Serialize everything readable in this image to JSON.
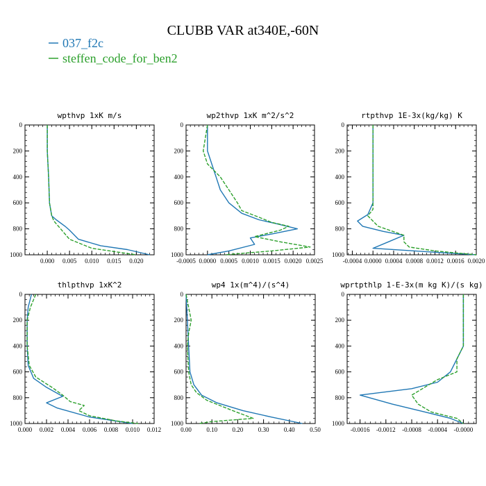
{
  "figure": {
    "title": "CLUBB VAR at340E,-60N",
    "legend": [
      {
        "name": "037_f2c",
        "color": "#1f77b4",
        "dash": "solid"
      },
      {
        "name": "steffen_code_for_ben2",
        "color": "#2ca02c",
        "dash": "dashed"
      }
    ]
  },
  "chart_data": [
    {
      "type": "line",
      "title": "wpthvp   1xK m/s",
      "xlim": [
        -0.005,
        0.024
      ],
      "ylim": [
        1000,
        0
      ],
      "xticks": [
        0.0,
        0.005,
        0.01,
        0.015,
        0.02
      ],
      "xtick_labels": [
        "0.000",
        "0.005",
        "0.010",
        "0.015",
        "0.020"
      ],
      "yticks": [
        0,
        200,
        400,
        600,
        800,
        1000
      ],
      "ytick_labels": [
        "0",
        "200",
        "400",
        "600",
        "800",
        "1000"
      ],
      "series": [
        {
          "name": "037_f2c",
          "points": [
            [
              0.0,
              0
            ],
            [
              0.0,
              200
            ],
            [
              0.0003,
              400
            ],
            [
              0.0005,
              600
            ],
            [
              0.001,
              700
            ],
            [
              0.002,
              730
            ],
            [
              0.004,
              780
            ],
            [
              0.005,
              810
            ],
            [
              0.007,
              880
            ],
            [
              0.012,
              930
            ],
            [
              0.018,
              960
            ],
            [
              0.023,
              1000
            ]
          ]
        },
        {
          "name": "steffen_code_for_ben2",
          "points": [
            [
              0.0,
              0
            ],
            [
              0.0,
              200
            ],
            [
              0.0003,
              400
            ],
            [
              0.0005,
              600
            ],
            [
              0.001,
              700
            ],
            [
              0.0015,
              740
            ],
            [
              0.003,
              800
            ],
            [
              0.005,
              880
            ],
            [
              0.01,
              950
            ],
            [
              0.015,
              975
            ],
            [
              0.02,
              1000
            ]
          ]
        }
      ]
    },
    {
      "type": "line",
      "title": "wp2thvp   1xK m^2/s^2",
      "xlim": [
        -0.0005,
        0.0025
      ],
      "ylim": [
        1000,
        0
      ],
      "xticks": [
        -0.0005,
        0.0,
        0.0005,
        0.001,
        0.0015,
        0.002,
        0.0025
      ],
      "xtick_labels": [
        "-0.0005",
        "0.0000",
        "0.0005",
        "0.0010",
        "0.0015",
        "0.0020",
        "0.0025"
      ],
      "yticks": [
        0,
        200,
        400,
        600,
        800,
        1000
      ],
      "ytick_labels": [
        "0",
        "200",
        "400",
        "600",
        "800",
        "1000"
      ],
      "series": [
        {
          "name": "037_f2c",
          "points": [
            [
              0.0,
              0
            ],
            [
              0.0,
              200
            ],
            [
              0.0001,
              300
            ],
            [
              0.0002,
              400
            ],
            [
              0.0003,
              500
            ],
            [
              0.0005,
              600
            ],
            [
              0.0008,
              680
            ],
            [
              0.0012,
              730
            ],
            [
              0.0016,
              760
            ],
            [
              0.0021,
              800
            ],
            [
              0.0015,
              840
            ],
            [
              0.001,
              870
            ],
            [
              0.0011,
              920
            ],
            [
              0.0005,
              970
            ],
            [
              0.0,
              1000
            ]
          ]
        },
        {
          "name": "steffen_code_for_ben2",
          "points": [
            [
              0.0,
              0
            ],
            [
              -0.0001,
              200
            ],
            [
              0.0,
              300
            ],
            [
              0.0003,
              400
            ],
            [
              0.0005,
              500
            ],
            [
              0.0007,
              600
            ],
            [
              0.0008,
              660
            ],
            [
              0.0012,
              710
            ],
            [
              0.0015,
              750
            ],
            [
              0.0019,
              780
            ],
            [
              0.0017,
              810
            ],
            [
              0.0011,
              860
            ],
            [
              0.0017,
              900
            ],
            [
              0.0024,
              940
            ],
            [
              0.0015,
              970
            ],
            [
              0.0004,
              1000
            ]
          ]
        }
      ]
    },
    {
      "type": "line",
      "title": "rtpthvp   1E-3x(kg/kg) K",
      "xlim": [
        -0.0005,
        0.002
      ],
      "ylim": [
        1000,
        0
      ],
      "xticks": [
        -0.0004,
        0.0,
        0.0004,
        0.0008,
        0.0012,
        0.0016,
        0.002
      ],
      "xtick_labels": [
        "-0.0004",
        "0.0000",
        "0.0004",
        "0.0008",
        "0.0012",
        "0.0016",
        "0.0020"
      ],
      "yticks": [
        0,
        200,
        400,
        600,
        800,
        1000
      ],
      "ytick_labels": [
        "0",
        "200",
        "400",
        "600",
        "800",
        "1000"
      ],
      "series": [
        {
          "name": "037_f2c",
          "points": [
            [
              0.0,
              0
            ],
            [
              0.0,
              400
            ],
            [
              0.0,
              600
            ],
            [
              -0.0001,
              690
            ],
            [
              -0.0003,
              740
            ],
            [
              -0.0002,
              780
            ],
            [
              0.0002,
              820
            ],
            [
              0.0006,
              850
            ],
            [
              0.0003,
              900
            ],
            [
              0.0,
              950
            ],
            [
              0.0012,
              980
            ],
            [
              0.002,
              1000
            ]
          ]
        },
        {
          "name": "steffen_code_for_ben2",
          "points": [
            [
              0.0,
              0
            ],
            [
              0.0,
              400
            ],
            [
              0.0,
              600
            ],
            [
              0.0,
              650
            ],
            [
              -0.0001,
              700
            ],
            [
              0.0001,
              780
            ],
            [
              0.0006,
              850
            ],
            [
              0.0006,
              900
            ],
            [
              0.0007,
              940
            ],
            [
              0.0012,
              970
            ],
            [
              0.002,
              1000
            ]
          ]
        }
      ]
    },
    {
      "type": "line",
      "title": "thlpthvp   1xK^2",
      "xlim": [
        0.0,
        0.012
      ],
      "ylim": [
        1000,
        0
      ],
      "xticks": [
        0.0,
        0.002,
        0.004,
        0.006,
        0.008,
        0.01,
        0.012
      ],
      "xtick_labels": [
        "0.000",
        "0.002",
        "0.004",
        "0.006",
        "0.008",
        "0.010",
        "0.012"
      ],
      "yticks": [
        0,
        200,
        400,
        600,
        800,
        1000
      ],
      "ytick_labels": [
        "0",
        "200",
        "400",
        "600",
        "800",
        "1000"
      ],
      "series": [
        {
          "name": "037_f2c",
          "points": [
            [
              0.0006,
              0
            ],
            [
              0.0003,
              100
            ],
            [
              0.0002,
              200
            ],
            [
              0.0002,
              400
            ],
            [
              0.0003,
              550
            ],
            [
              0.0008,
              650
            ],
            [
              0.002,
              720
            ],
            [
              0.0035,
              790
            ],
            [
              0.002,
              840
            ],
            [
              0.003,
              880
            ],
            [
              0.006,
              950
            ],
            [
              0.01,
              1000
            ]
          ]
        },
        {
          "name": "steffen_code_for_ben2",
          "points": [
            [
              0.001,
              0
            ],
            [
              0.0005,
              100
            ],
            [
              0.0002,
              200
            ],
            [
              0.0002,
              400
            ],
            [
              0.0004,
              550
            ],
            [
              0.001,
              640
            ],
            [
              0.0025,
              720
            ],
            [
              0.0035,
              780
            ],
            [
              0.0042,
              830
            ],
            [
              0.0055,
              860
            ],
            [
              0.005,
              900
            ],
            [
              0.006,
              940
            ],
            [
              0.0085,
              980
            ],
            [
              0.0105,
              1000
            ]
          ]
        }
      ]
    },
    {
      "type": "line",
      "title": "wp4   1x(m^4)/(s^4)",
      "xlim": [
        0.0,
        0.5
      ],
      "ylim": [
        1000,
        0
      ],
      "xticks": [
        0.0,
        0.1,
        0.2,
        0.3,
        0.4,
        0.5
      ],
      "xtick_labels": [
        "0.00",
        "0.10",
        "0.20",
        "0.30",
        "0.40",
        "0.50"
      ],
      "yticks": [
        0,
        200,
        400,
        600,
        800,
        1000
      ],
      "ytick_labels": [
        "0",
        "200",
        "400",
        "600",
        "800",
        "1000"
      ],
      "series": [
        {
          "name": "037_f2c",
          "points": [
            [
              0.0,
              0
            ],
            [
              0.005,
              200
            ],
            [
              0.01,
              400
            ],
            [
              0.015,
              600
            ],
            [
              0.03,
              700
            ],
            [
              0.06,
              780
            ],
            [
              0.12,
              840
            ],
            [
              0.22,
              900
            ],
            [
              0.33,
              950
            ],
            [
              0.45,
              1000
            ]
          ]
        },
        {
          "name": "steffen_code_for_ben2",
          "points": [
            [
              0.0,
              0
            ],
            [
              0.02,
              200
            ],
            [
              0.01,
              300
            ],
            [
              0.005,
              400
            ],
            [
              0.01,
              600
            ],
            [
              0.02,
              700
            ],
            [
              0.04,
              760
            ],
            [
              0.08,
              820
            ],
            [
              0.18,
              900
            ],
            [
              0.26,
              960
            ],
            [
              0.1,
              985
            ],
            [
              0.05,
              1000
            ]
          ]
        }
      ]
    },
    {
      "type": "line",
      "title": "wprtpthlp   1-E-3x(m kg K)/(s kg)",
      "xlim": [
        -0.0018,
        0.0002
      ],
      "ylim": [
        1000,
        0
      ],
      "xticks": [
        -0.0016,
        -0.0012,
        -0.0008,
        -0.0004,
        0.0
      ],
      "xtick_labels": [
        "-0.0016",
        "-0.0012",
        "-0.0008",
        "-0.0004",
        "-0.0000"
      ],
      "yticks": [
        0,
        200,
        400,
        600,
        800,
        1000
      ],
      "ytick_labels": [
        "0",
        "200",
        "400",
        "600",
        "800",
        "1000"
      ],
      "series": [
        {
          "name": "037_f2c",
          "points": [
            [
              0.0,
              0
            ],
            [
              0.0,
              200
            ],
            [
              0.0,
              400
            ],
            [
              -0.0001,
              500
            ],
            [
              -0.0002,
              600
            ],
            [
              -0.0004,
              680
            ],
            [
              -0.0008,
              730
            ],
            [
              -0.0016,
              780
            ],
            [
              -0.0011,
              850
            ],
            [
              -0.0006,
              910
            ],
            [
              -0.0002,
              960
            ],
            [
              0.0,
              1000
            ]
          ]
        },
        {
          "name": "steffen_code_for_ben2",
          "points": [
            [
              0.0,
              0
            ],
            [
              0.0,
              200
            ],
            [
              0.0,
              400
            ],
            [
              -0.0001,
              500
            ],
            [
              -0.0001,
              600
            ],
            [
              -0.0004,
              660
            ],
            [
              -0.0006,
              720
            ],
            [
              -0.0008,
              780
            ],
            [
              -0.0007,
              850
            ],
            [
              -0.0005,
              910
            ],
            [
              -0.0001,
              960
            ],
            [
              0.0,
              1000
            ]
          ]
        }
      ]
    }
  ]
}
